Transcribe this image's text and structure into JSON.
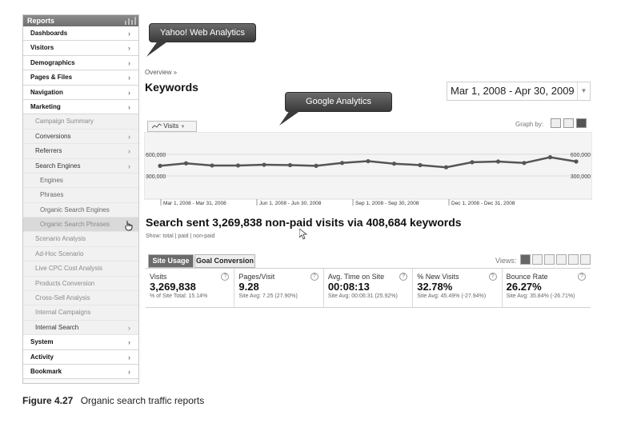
{
  "sidebar": {
    "header": "Reports",
    "items": [
      {
        "label": "Dashboards",
        "level": "top",
        "arrow": true
      },
      {
        "label": "Visitors",
        "level": "top",
        "arrow": true
      },
      {
        "label": "Demographics",
        "level": "top",
        "arrow": true
      },
      {
        "label": "Pages & Files",
        "level": "top",
        "arrow": true
      },
      {
        "label": "Navigation",
        "level": "top",
        "arrow": true
      },
      {
        "label": "Marketing",
        "level": "top",
        "arrow": true
      },
      {
        "label": "Campaign Summary",
        "level": "sub-muted",
        "arrow": false
      },
      {
        "label": "Conversions",
        "level": "sub",
        "arrow": true
      },
      {
        "label": "Referrers",
        "level": "sub",
        "arrow": true
      },
      {
        "label": "Search Engines",
        "level": "sub",
        "arrow": true
      },
      {
        "label": "Engines",
        "level": "sub2",
        "arrow": false
      },
      {
        "label": "Phrases",
        "level": "sub2",
        "arrow": false
      },
      {
        "label": "Organic Search Engines",
        "level": "sub2",
        "arrow": false
      },
      {
        "label": "Organic Search Phrases",
        "level": "selected",
        "arrow": false
      },
      {
        "label": "Scenario Analysis",
        "level": "sub-muted",
        "arrow": false
      },
      {
        "label": "Ad-Hoc Scenario",
        "level": "sub-muted",
        "arrow": false
      },
      {
        "label": "Live CPC Cost Analysis",
        "level": "sub-muted",
        "arrow": false
      },
      {
        "label": "Products Conversion",
        "level": "sub-muted",
        "arrow": false
      },
      {
        "label": "Cross-Sell Analysis",
        "level": "sub-muted",
        "arrow": false
      },
      {
        "label": "Internal Campaigns",
        "level": "sub-muted",
        "arrow": false
      },
      {
        "label": "Internal Search",
        "level": "sub",
        "arrow": true
      },
      {
        "label": "System",
        "level": "top",
        "arrow": true
      },
      {
        "label": "Activity",
        "level": "top",
        "arrow": true
      },
      {
        "label": "Bookmark",
        "level": "top",
        "arrow": true
      }
    ]
  },
  "callouts": {
    "yahoo": "Yahoo! Web Analytics",
    "google": "Google Analytics"
  },
  "main": {
    "breadcrumb": "Overview »",
    "title": "Keywords",
    "date_range": "Mar 1, 2008 - Apr 30, 2009",
    "visits_button": "Visits",
    "graph_by": "Graph by:",
    "headline": "Search sent 3,269,838 non-paid visits via 408,684 keywords",
    "show_line": "Show:  total | paid | non-paid",
    "tabs": [
      "Site Usage",
      "Goal Conversion"
    ],
    "views_label": "Views:"
  },
  "chart_data": {
    "type": "line",
    "y_tick_labels": [
      "600,000",
      "300,000"
    ],
    "ylim": [
      0,
      800000
    ],
    "x_tick_labels": [
      "Mar 1, 2008 - Mar 31, 2008",
      "Jun 1, 2008 - Jun 30, 2008",
      "Sep 1, 2008 - Sep 30, 2008",
      "Dec 1, 2008 - Dec 31, 2008"
    ],
    "series": [
      {
        "values": [
          440000,
          475000,
          445000,
          445000,
          455000,
          450000,
          440000,
          480000,
          505000,
          470000,
          450000,
          420000,
          490000,
          500000,
          480000,
          560000,
          500000
        ]
      }
    ],
    "color": "#555555"
  },
  "metrics": [
    {
      "label": "Visits",
      "value": "3,269,838",
      "sub": "% of Site Total: 15.14%"
    },
    {
      "label": "Pages/Visit",
      "value": "9.28",
      "sub": "Site Avg: 7.25 (27.90%)"
    },
    {
      "label": "Avg. Time on Site",
      "value": "00:08:13",
      "sub": "Site Avg: 00:06:31 (25.92%)"
    },
    {
      "label": "% New Visits",
      "value": "32.78%",
      "sub": "Site Avg: 45.49% (-27.94%)"
    },
    {
      "label": "Bounce Rate",
      "value": "26.27%",
      "sub": "Site Avg: 35.84% (-26.71%)"
    }
  ],
  "help_glyph": "?",
  "caption": {
    "number": "Figure 4.27",
    "text": "Organic search traffic reports"
  }
}
